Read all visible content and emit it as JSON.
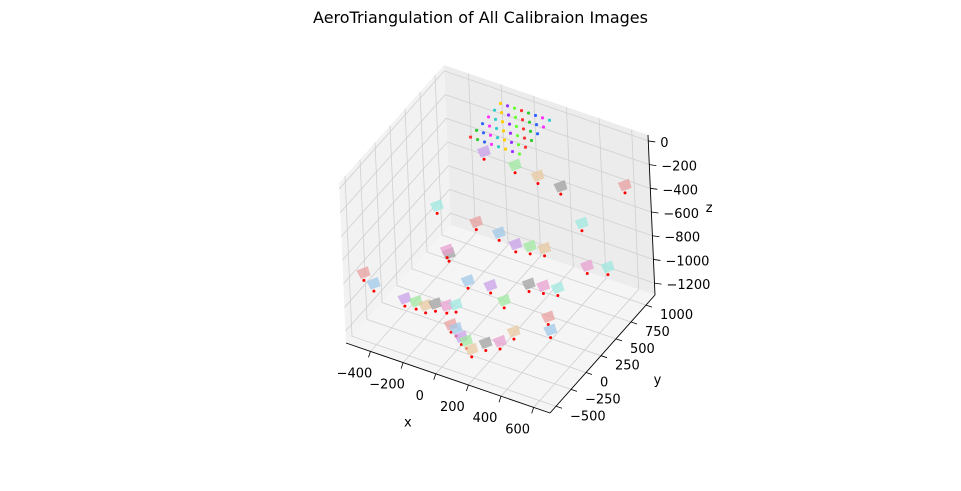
{
  "title": "AeroTriangulation of All Calibraion Images",
  "chart_data": {
    "type": "scatter3d",
    "title": "AeroTriangulation of All Calibraion Images",
    "xlabel": "x",
    "ylabel": "y",
    "zlabel": "z",
    "xlim": [
      -550,
      700
    ],
    "ylim": [
      -600,
      1150
    ],
    "zlim": [
      -1300,
      50
    ],
    "xticks": [
      -400,
      -200,
      0,
      200,
      400,
      600
    ],
    "yticks": [
      -500,
      -250,
      0,
      250,
      500,
      750,
      1000
    ],
    "zticks": [
      0,
      -200,
      -400,
      -600,
      -800,
      -1000,
      -1200
    ],
    "grid": true,
    "camera_points": [
      [
        -520,
        -350,
        -900
      ],
      [
        -480,
        -300,
        -1000
      ],
      [
        -350,
        -150,
        -1150
      ],
      [
        -300,
        -100,
        -1180
      ],
      [
        -250,
        -80,
        -1200
      ],
      [
        -200,
        -50,
        -1180
      ],
      [
        -150,
        0,
        -1200
      ],
      [
        -100,
        20,
        -1180
      ],
      [
        -50,
        -200,
        -1200
      ],
      [
        0,
        -250,
        -1180
      ],
      [
        50,
        -300,
        -1200
      ],
      [
        100,
        -350,
        -1180
      ],
      [
        150,
        -400,
        -1200
      ],
      [
        200,
        -300,
        -1180
      ],
      [
        250,
        -200,
        -1200
      ],
      [
        -300,
        300,
        -600
      ],
      [
        -100,
        400,
        -700
      ],
      [
        0,
        500,
        -800
      ],
      [
        100,
        500,
        -850
      ],
      [
        150,
        600,
        -900
      ],
      [
        200,
        700,
        -950
      ],
      [
        250,
        300,
        -1000
      ],
      [
        300,
        400,
        -1050
      ],
      [
        350,
        500,
        -1100
      ],
      [
        400,
        200,
        -1150
      ],
      [
        450,
        100,
        -1180
      ],
      [
        -150,
        700,
        -300
      ],
      [
        0,
        800,
        -400
      ],
      [
        100,
        900,
        -500
      ],
      [
        200,
        1000,
        -600
      ],
      [
        500,
        600,
        -900
      ],
      [
        550,
        800,
        -1000
      ],
      [
        600,
        1000,
        -400
      ],
      [
        -50,
        100,
        -1000
      ],
      [
        50,
        200,
        -1050
      ],
      [
        150,
        150,
        -1100
      ],
      [
        300,
        -100,
        -1150
      ],
      [
        -200,
        200,
        -900
      ],
      [
        -250,
        300,
        -950
      ],
      [
        400,
        800,
        -700
      ]
    ],
    "target_grid": {
      "x_range": [
        -150,
        150
      ],
      "y_range": [
        500,
        1000
      ],
      "z": 0,
      "rows": 6,
      "cols": 8
    }
  }
}
